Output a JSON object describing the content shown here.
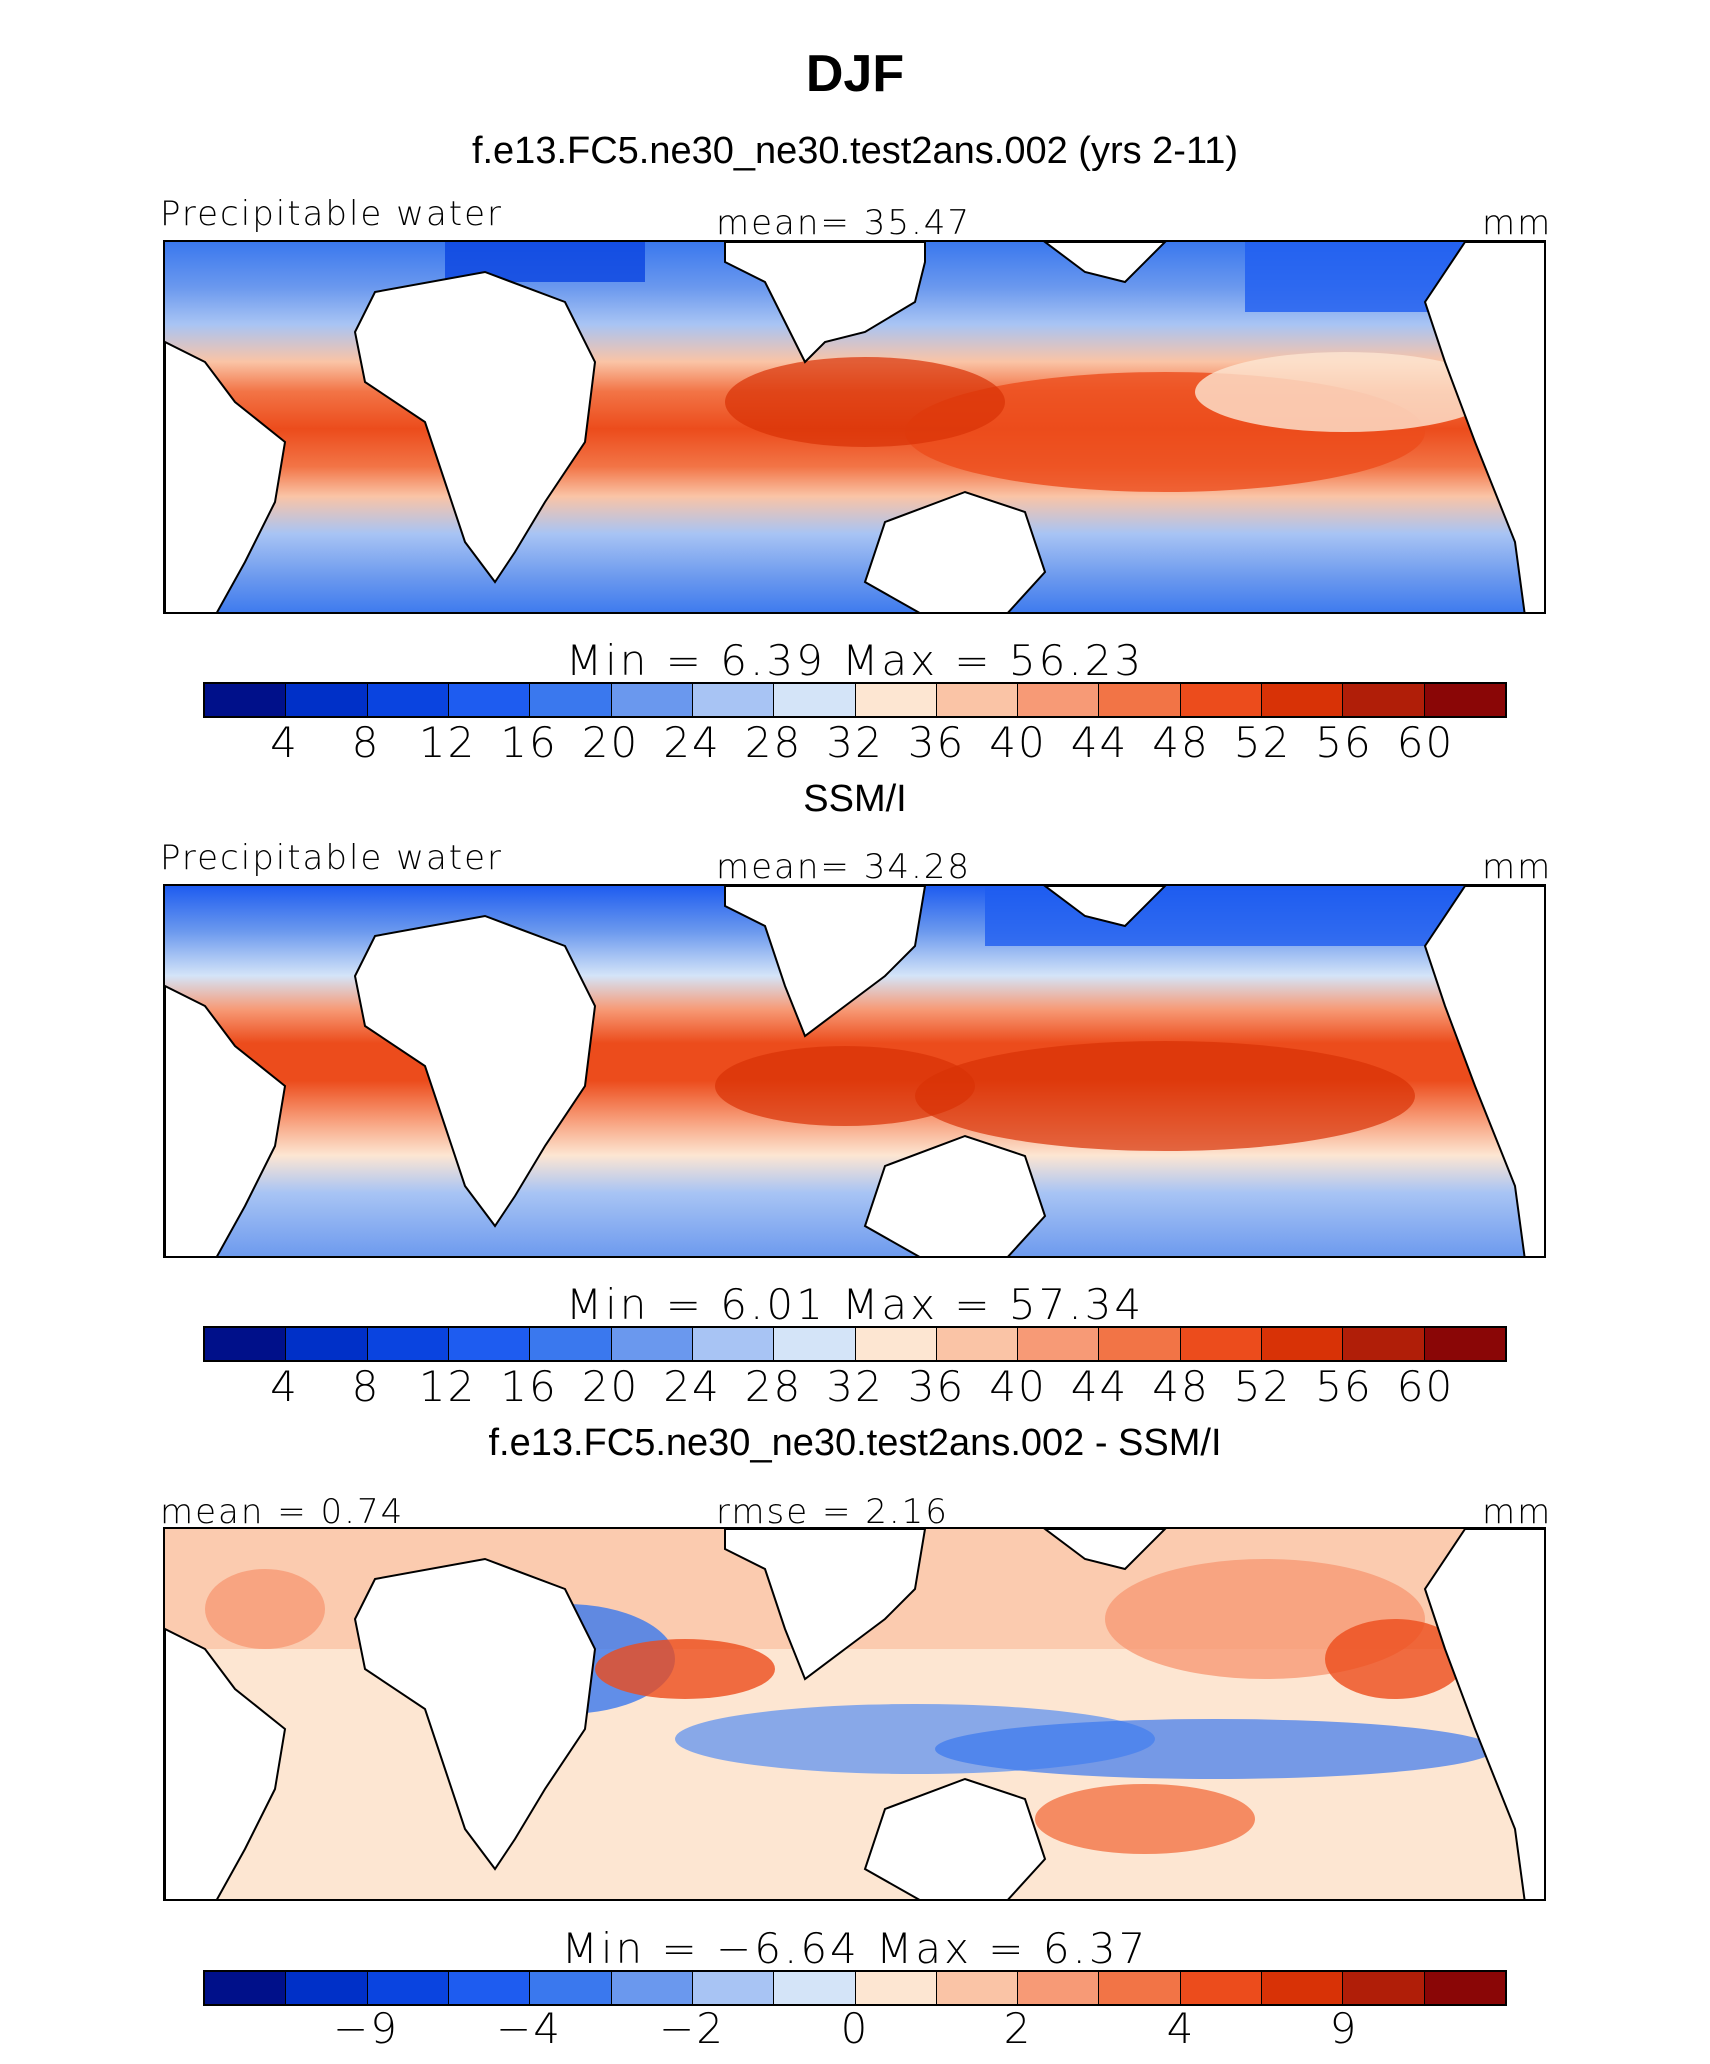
{
  "title": "DJF",
  "colors": [
    "#00108a",
    "#0030c8",
    "#0a44e0",
    "#1e5cf0",
    "#3a78ee",
    "#6a98ee",
    "#a8c4f4",
    "#d4e4f8",
    "#fde6d2",
    "#fac4a6",
    "#f79a76",
    "#f27446",
    "#ec4c1c",
    "#d83206",
    "#b01e08",
    "#8a0606"
  ],
  "panels": [
    {
      "title": "f.e13.FC5.ne30_ne30.test2ans.002 (yrs 2-11)",
      "left_label": "Precipitable water",
      "center_label": "mean=  35.47",
      "right_label": "mm",
      "minmax": "Min  =    6.39  Max  =   56.23",
      "ticks": [
        "4",
        "8",
        "12",
        "16",
        "20",
        "24",
        "28",
        "32",
        "36",
        "40",
        "44",
        "48",
        "52",
        "56",
        "60"
      ]
    },
    {
      "title": "SSM/I",
      "left_label": "Precipitable water",
      "center_label": "mean=  34.28",
      "right_label": "mm",
      "minmax": "Min  =    6.01  Max  =   57.34",
      "ticks": [
        "4",
        "8",
        "12",
        "16",
        "20",
        "24",
        "28",
        "32",
        "36",
        "40",
        "44",
        "48",
        "52",
        "56",
        "60"
      ]
    },
    {
      "title": "f.e13.FC5.ne30_ne30.test2ans.002 - SSM/I",
      "left_label": "mean  =   0.74",
      "center_label": "rmse  =    2.16",
      "right_label": "mm",
      "minmax": "Min  =  −6.64  Max  =    6.37",
      "ticks": [
        "−9",
        "−4",
        "−2",
        "0",
        "2",
        "4",
        "9"
      ]
    }
  ]
}
